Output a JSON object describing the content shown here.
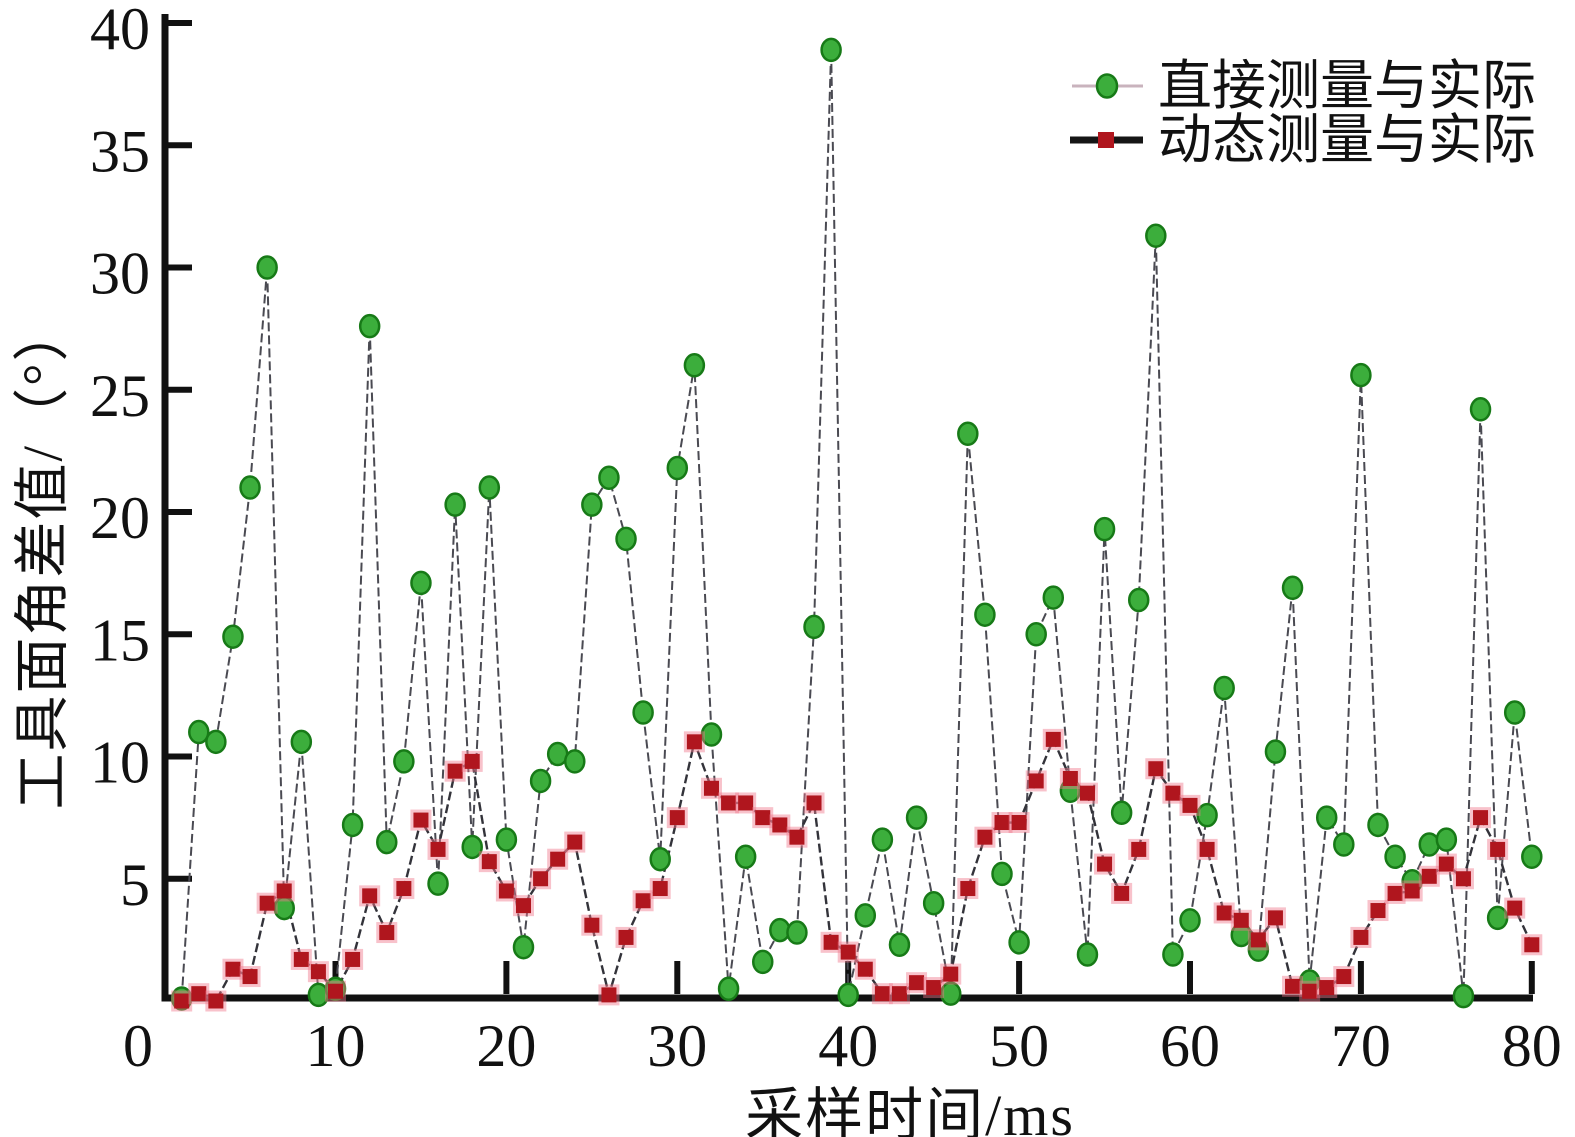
{
  "chart_data": {
    "type": "line",
    "title": "",
    "xlabel": "采样时间/ms",
    "ylabel": "工具面角差值/（°）",
    "xlim": [
      0,
      80
    ],
    "ylim": [
      0,
      40
    ],
    "x_ticks": [
      0,
      10,
      20,
      30,
      40,
      50,
      60,
      70,
      80
    ],
    "y_ticks": [
      5,
      10,
      15,
      20,
      25,
      30,
      35,
      40
    ],
    "grid": false,
    "legend_position": "top-right",
    "axis_color": "#111111",
    "x": [
      1,
      2,
      3,
      4,
      5,
      6,
      7,
      8,
      9,
      10,
      11,
      12,
      13,
      14,
      15,
      16,
      17,
      18,
      19,
      20,
      21,
      22,
      23,
      24,
      25,
      26,
      27,
      28,
      29,
      30,
      31,
      32,
      33,
      34,
      35,
      36,
      37,
      38,
      39,
      40,
      41,
      42,
      43,
      44,
      45,
      46,
      47,
      48,
      49,
      50,
      51,
      52,
      53,
      54,
      55,
      56,
      57,
      58,
      59,
      60,
      61,
      62,
      63,
      64,
      65,
      66,
      67,
      68,
      69,
      70,
      71,
      72,
      73,
      74,
      75,
      76,
      77,
      78,
      79,
      80
    ],
    "series": [
      {
        "name": "直接测量与实际",
        "marker": "circle",
        "marker_fill": "#3cae3c",
        "marker_edge": "#177a17",
        "line_color": "#4a4a52",
        "legend_line_color": "#c9b3bd",
        "values": [
          0.1,
          11.0,
          10.6,
          14.9,
          21.0,
          30.0,
          3.8,
          10.6,
          0.25,
          0.5,
          7.2,
          27.6,
          6.5,
          9.8,
          17.1,
          4.8,
          20.3,
          6.3,
          21.0,
          6.6,
          2.2,
          9.0,
          10.1,
          9.8,
          20.3,
          21.4,
          18.9,
          11.8,
          5.8,
          21.8,
          26.0,
          10.9,
          0.5,
          5.9,
          1.6,
          2.9,
          2.8,
          15.3,
          38.9,
          0.25,
          3.5,
          6.6,
          2.3,
          7.5,
          4.0,
          0.3,
          23.2,
          15.8,
          5.2,
          2.4,
          15.0,
          16.5,
          8.6,
          1.9,
          19.3,
          7.7,
          16.4,
          31.3,
          1.9,
          3.3,
          7.6,
          12.8,
          2.7,
          2.1,
          10.2,
          16.9,
          0.8,
          7.5,
          6.4,
          25.6,
          7.2,
          5.9,
          4.9,
          6.4,
          6.6,
          0.2,
          24.2,
          3.4,
          11.8,
          5.9
        ]
      },
      {
        "name": "动态测量与实际",
        "marker": "square",
        "marker_fill": "#b0161e",
        "marker_halo": "rgba(240,120,140,0.45)",
        "line_color": "#33333a",
        "legend_line_color": "#151515",
        "values": [
          0.0,
          0.3,
          0.0,
          1.3,
          1.0,
          4.0,
          4.5,
          1.7,
          1.2,
          0.4,
          1.7,
          4.3,
          2.8,
          4.6,
          7.4,
          6.2,
          9.4,
          9.8,
          5.7,
          4.5,
          3.9,
          5.0,
          5.8,
          6.5,
          3.1,
          0.25,
          2.6,
          4.1,
          4.6,
          7.5,
          10.6,
          8.7,
          8.1,
          8.1,
          7.5,
          7.2,
          6.7,
          8.1,
          2.4,
          2.0,
          1.3,
          0.3,
          0.3,
          0.75,
          0.55,
          1.1,
          4.6,
          6.7,
          7.3,
          7.3,
          9.0,
          10.7,
          9.1,
          8.5,
          5.6,
          4.4,
          6.2,
          9.5,
          8.5,
          8.0,
          6.2,
          3.6,
          3.3,
          2.5,
          3.4,
          0.6,
          0.4,
          0.55,
          1.0,
          2.6,
          3.7,
          4.4,
          4.5,
          5.1,
          5.6,
          5.0,
          7.5,
          6.2,
          3.8,
          2.3
        ]
      }
    ]
  }
}
